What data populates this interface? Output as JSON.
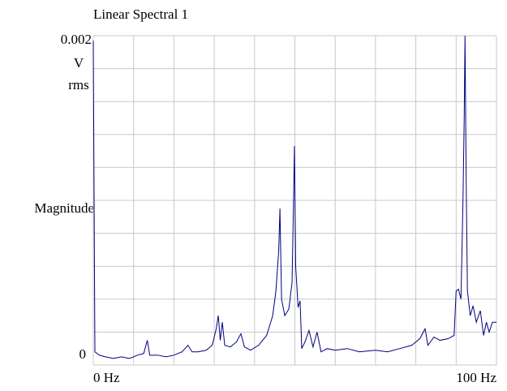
{
  "chart_data": {
    "type": "line",
    "title": "Linear Spectral 1",
    "y_label": "Magnitude",
    "y_unit_lines": [
      "V",
      "rms"
    ],
    "color": "#000080",
    "grid": true,
    "xlim": [
      0,
      100
    ],
    "ylim": [
      0,
      0.002
    ],
    "xticks": [
      {
        "value": 0,
        "label": "0 Hz"
      },
      {
        "value": 100,
        "label": "100 Hz"
      }
    ],
    "yticks": [
      0,
      0.002
    ],
    "xgrid": [
      0,
      10,
      20,
      30,
      40,
      50,
      60,
      70,
      80,
      90,
      100
    ],
    "ygrid": [
      0,
      0.0002,
      0.0004,
      0.0006,
      0.0008,
      0.001,
      0.0012,
      0.0014,
      0.0016,
      0.0018,
      0.002
    ],
    "x": [
      0,
      0.4,
      1.5,
      3,
      5,
      7,
      9,
      11,
      12.5,
      13.4,
      14,
      16,
      18,
      20,
      22,
      23.5,
      24.5,
      26,
      28,
      29.5,
      30.5,
      31.0,
      31.5,
      32.0,
      32.6,
      34,
      35.5,
      36.6,
      37.5,
      39,
      41,
      43,
      44.5,
      45.3,
      46.0,
      46.3,
      46.7,
      47.5,
      48.5,
      49.3,
      49.6,
      49.9,
      50.2,
      50.8,
      51.3,
      51.7,
      52.5,
      53.5,
      54.5,
      55.5,
      56.5,
      58,
      60,
      63,
      66,
      70,
      73,
      76,
      79,
      81,
      82.3,
      83,
      84.5,
      86,
      88,
      89.5,
      90.0,
      90.6,
      91.2,
      91.7,
      92.0,
      92.2,
      92.5,
      92.8,
      93.5,
      94.2,
      95,
      96,
      96.8,
      97.5,
      98.2,
      99,
      100
    ],
    "values": [
      0.00197,
      8e-05,
      6e-05,
      5e-05,
      4e-05,
      5e-05,
      4e-05,
      6e-05,
      7e-05,
      0.00015,
      6e-05,
      6e-05,
      5e-05,
      6e-05,
      8e-05,
      0.00012,
      8e-05,
      8e-05,
      9e-05,
      0.00012,
      0.00022,
      0.0003,
      0.00015,
      0.00026,
      0.00012,
      0.00011,
      0.00014,
      0.00019,
      0.00011,
      9e-05,
      0.00012,
      0.00018,
      0.0003,
      0.00045,
      0.0007,
      0.00095,
      0.0004,
      0.0003,
      0.00034,
      0.0005,
      0.0009,
      0.00133,
      0.0006,
      0.00035,
      0.00039,
      0.0001,
      0.00014,
      0.00021,
      0.00011,
      0.0002,
      8e-05,
      0.0001,
      9e-05,
      0.0001,
      8e-05,
      9e-05,
      8e-05,
      0.0001,
      0.00012,
      0.00016,
      0.00022,
      0.00012,
      0.00017,
      0.00015,
      0.00016,
      0.00018,
      0.00045,
      0.00046,
      0.0004,
      0.001,
      0.0015,
      0.002,
      0.0011,
      0.00045,
      0.0003,
      0.00036,
      0.00026,
      0.00033,
      0.00018,
      0.00026,
      0.0002,
      0.00026,
      0.00026
    ]
  }
}
